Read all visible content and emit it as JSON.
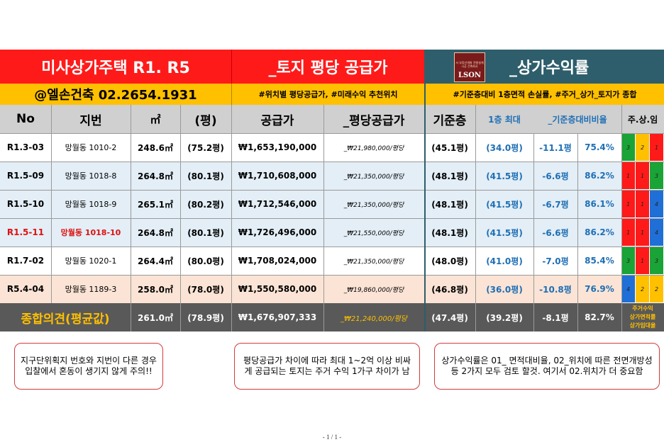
{
  "header": {
    "title_left": "미사상가주택 R1. R5",
    "title_mid": "_토지 평당 공급가",
    "title_right": "_상가수익률",
    "logo_text": "LSON",
    "logo_small": "서 부동산개발 전원설계 시공 건축회사",
    "company": "@엘손건축 02.2654.1931",
    "tagline_mid": "#위치별 평당공급가, #미래수익 추천위치",
    "tagline_right": "#기준층대비 1층면적 손실률, #주거_상가_토지가 종합"
  },
  "columns": {
    "no": "No",
    "lot": "지번",
    "sqm": "㎡",
    "pyeong": "(평)",
    "price": "공급가",
    "unit_price": "_평당공급가",
    "base_floor": "기준층",
    "first_floor_max": "1층 최대",
    "ratio": "_기준층대비비율",
    "mix": "주.상.임"
  },
  "rows": [
    {
      "no": "R1.3-03",
      "lot": "망월동 1010-2",
      "sqm": "248.6㎡",
      "pyeong": "(75.2평)",
      "price": "₩1,653,190,000",
      "unit": "_₩21,980,000/평당",
      "base": "(45.1평)",
      "first": "(34.0평)",
      "diff": "-11.1평",
      "ratio": "75.4%",
      "mix": [
        "3",
        "2",
        "1"
      ],
      "mix_colors": [
        "#1aa336",
        "#ffc000",
        "#ff1a1a"
      ],
      "highlight": false,
      "bg": "#ffffff"
    },
    {
      "no": "R1.5-09",
      "lot": "망월동 1018-8",
      "sqm": "264.8㎡",
      "pyeong": "(80.1평)",
      "price": "₩1,710,608,000",
      "unit": "_₩21,350,000/평당",
      "base": "(48.1평)",
      "first": "(41.5평)",
      "diff": "-6.6평",
      "ratio": "86.2%",
      "mix": [
        "1",
        "1",
        "3"
      ],
      "mix_colors": [
        "#ff1a1a",
        "#ff1a1a",
        "#1aa336"
      ],
      "highlight": false,
      "bg": "#e3eef6"
    },
    {
      "no": "R1.5-10",
      "lot": "망월동 1018-9",
      "sqm": "265.1㎡",
      "pyeong": "(80.2평)",
      "price": "₩1,712,546,000",
      "unit": "_₩21,350,000/평당",
      "base": "(48.1평)",
      "first": "(41.5평)",
      "diff": "-6.7평",
      "ratio": "86.1%",
      "mix": [
        "1",
        "1",
        "4"
      ],
      "mix_colors": [
        "#ff1a1a",
        "#ff1a1a",
        "#1f6fd6"
      ],
      "highlight": false,
      "bg": "#e3eef6"
    },
    {
      "no": "R1.5-11",
      "lot": "망월동 1018-10",
      "sqm": "264.8㎡",
      "pyeong": "(80.1평)",
      "price": "₩1,726,496,000",
      "unit": "_₩21,550,000/평당",
      "base": "(48.1평)",
      "first": "(41.5평)",
      "diff": "-6.6평",
      "ratio": "86.2%",
      "mix": [
        "1",
        "1",
        "4"
      ],
      "mix_colors": [
        "#ff1a1a",
        "#ff1a1a",
        "#1f6fd6"
      ],
      "highlight": true,
      "bg": "#e3eef6"
    },
    {
      "no": "R1.7-02",
      "lot": "망월동 1020-1",
      "sqm": "264.4㎡",
      "pyeong": "(80.0평)",
      "price": "₩1,708,024,000",
      "unit": "_₩21,350,000/평당",
      "base": "(48.0평)",
      "first": "(41.0평)",
      "diff": "-7.0평",
      "ratio": "85.4%",
      "mix": [
        "3",
        "1",
        "3"
      ],
      "mix_colors": [
        "#1aa336",
        "#ff1a1a",
        "#1aa336"
      ],
      "highlight": false,
      "bg": "#ffffff"
    },
    {
      "no": "R5.4-04",
      "lot": "망월동 1189-3",
      "sqm": "258.0㎡",
      "pyeong": "(78.0평)",
      "price": "₩1,550,580,000",
      "unit": "_₩19,860,000/평당",
      "base": "(46.8평)",
      "first": "(36.0평)",
      "diff": "-10.8평",
      "ratio": "76.9%",
      "mix": [
        "4",
        "2",
        "2"
      ],
      "mix_colors": [
        "#1f6fd6",
        "#ffc000",
        "#ffc000"
      ],
      "highlight": false,
      "bg": "#fbe4d5"
    }
  ],
  "summary": {
    "label": "종합의견(평균값)",
    "sqm": "261.0㎡",
    "pyeong": "(78.9평)",
    "price": "₩1,676,907,333",
    "unit": "_₩21,240,000/평당",
    "base": "(47.4평)",
    "first": "(39.2평)",
    "diff": "-8.1평",
    "ratio": "82.7%",
    "legend": [
      "주거수익",
      "상가면적률",
      "상가임대율"
    ]
  },
  "notes": [
    "지구단위획지 번호와 지번이 다른 경우 입찰에서 혼동이 생기지 않게 주의!!",
    "평당공급가 차이에 따라 최대 1~2억 이상 비싸게 공급되는 토지는 주거 수익 1가구 차이가 남",
    "상가수익률은 01_ 면적대비율, 02_위치에 따른 전면개방성 등 2가지 모두 검토 할것. 여기서 02.위치가 더 중요함"
  ],
  "footer": "- 1 / 1 -"
}
